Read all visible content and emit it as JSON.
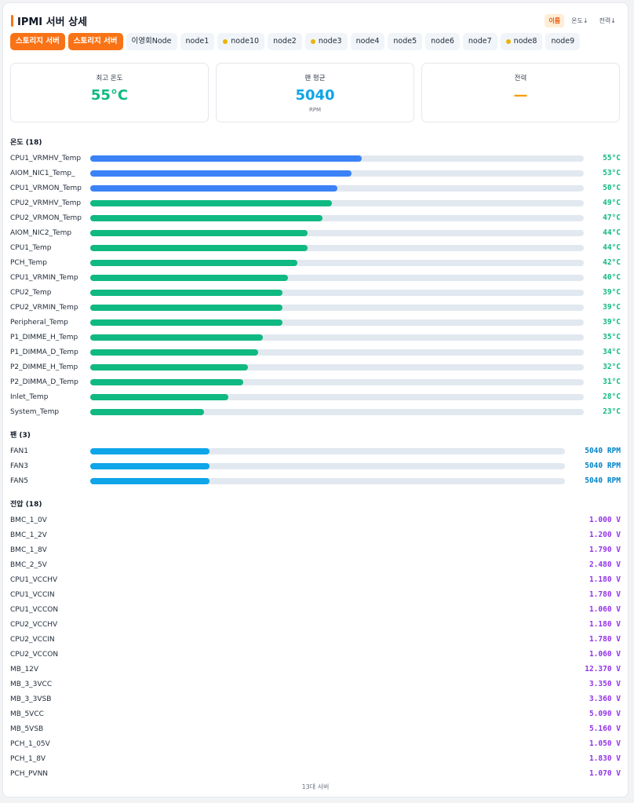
{
  "header": {
    "title": "IPMI 서버 상세",
    "sort": [
      {
        "label": "이름",
        "active": true
      },
      {
        "label": "온도↓",
        "active": false
      },
      {
        "label": "전력↓",
        "active": false
      }
    ]
  },
  "tabs": [
    {
      "label": "스토리지 서버",
      "style": "active"
    },
    {
      "label": "스토리지 서버",
      "style": "active"
    },
    {
      "label": "이영회Node",
      "style": "plain"
    },
    {
      "label": "node1",
      "style": "plain"
    },
    {
      "label": "node10",
      "style": "dot"
    },
    {
      "label": "node2",
      "style": "plain"
    },
    {
      "label": "node3",
      "style": "dot"
    },
    {
      "label": "node4",
      "style": "plain"
    },
    {
      "label": "node5",
      "style": "plain"
    },
    {
      "label": "node6",
      "style": "plain"
    },
    {
      "label": "node7",
      "style": "plain"
    },
    {
      "label": "node8",
      "style": "dot"
    },
    {
      "label": "node9",
      "style": "plain"
    }
  ],
  "cards": [
    {
      "label": "최고 온도",
      "value": "55°C",
      "color": "#10b981"
    },
    {
      "label": "팬 평균",
      "value": "5040",
      "unit": "RPM",
      "color": "#0ea5e9"
    },
    {
      "label": "전력",
      "value": "—",
      "color": "#f59e0b"
    }
  ],
  "temps": {
    "title": "온도 (18)",
    "max": 100,
    "text_color": "#10b981",
    "items": [
      {
        "name": "CPU1_VRMHV_Temp",
        "value": 55,
        "label": "55°C",
        "color": "#3b82f6"
      },
      {
        "name": "AIOM_NIC1_Temp_",
        "value": 53,
        "label": "53°C",
        "color": "#3b82f6"
      },
      {
        "name": "CPU1_VRMON_Temp",
        "value": 50,
        "label": "50°C",
        "color": "#3b82f6"
      },
      {
        "name": "CPU2_VRMHV_Temp",
        "value": 49,
        "label": "49°C",
        "color": "#10b981"
      },
      {
        "name": "CPU2_VRMON_Temp",
        "value": 47,
        "label": "47°C",
        "color": "#10b981"
      },
      {
        "name": "AIOM_NIC2_Temp",
        "value": 44,
        "label": "44°C",
        "color": "#10b981"
      },
      {
        "name": "CPU1_Temp",
        "value": 44,
        "label": "44°C",
        "color": "#10b981"
      },
      {
        "name": "PCH_Temp",
        "value": 42,
        "label": "42°C",
        "color": "#10b981"
      },
      {
        "name": "CPU1_VRMIN_Temp",
        "value": 40,
        "label": "40°C",
        "color": "#10b981"
      },
      {
        "name": "CPU2_Temp",
        "value": 39,
        "label": "39°C",
        "color": "#10b981"
      },
      {
        "name": "CPU2_VRMIN_Temp",
        "value": 39,
        "label": "39°C",
        "color": "#10b981"
      },
      {
        "name": "Peripheral_Temp",
        "value": 39,
        "label": "39°C",
        "color": "#10b981"
      },
      {
        "name": "P1_DIMME_H_Temp",
        "value": 35,
        "label": "35°C",
        "color": "#10b981"
      },
      {
        "name": "P1_DIMMA_D_Temp",
        "value": 34,
        "label": "34°C",
        "color": "#10b981"
      },
      {
        "name": "P2_DIMME_H_Temp",
        "value": 32,
        "label": "32°C",
        "color": "#10b981"
      },
      {
        "name": "P2_DIMMA_D_Temp",
        "value": 31,
        "label": "31°C",
        "color": "#10b981"
      },
      {
        "name": "Inlet_Temp",
        "value": 28,
        "label": "28°C",
        "color": "#10b981"
      },
      {
        "name": "System_Temp",
        "value": 23,
        "label": "23°C",
        "color": "#10b981"
      }
    ]
  },
  "fans": {
    "title": "팬 (3)",
    "max": 20000,
    "text_color": "#0284c7",
    "items": [
      {
        "name": "FAN1",
        "value": 5040,
        "label": "5040 RPM",
        "color": "#0ea5e9"
      },
      {
        "name": "FAN3",
        "value": 5040,
        "label": "5040 RPM",
        "color": "#0ea5e9"
      },
      {
        "name": "FAN5",
        "value": 5040,
        "label": "5040 RPM",
        "color": "#0ea5e9"
      }
    ]
  },
  "volts": {
    "title": "전압 (18)",
    "text_color": "#9333ea",
    "items": [
      {
        "name": "BMC_1_0V",
        "label": "1.000 V"
      },
      {
        "name": "BMC_1_2V",
        "label": "1.200 V"
      },
      {
        "name": "BMC_1_8V",
        "label": "1.790 V"
      },
      {
        "name": "BMC_2_5V",
        "label": "2.480 V"
      },
      {
        "name": "CPU1_VCCHV",
        "label": "1.180 V"
      },
      {
        "name": "CPU1_VCCIN",
        "label": "1.780 V"
      },
      {
        "name": "CPU1_VCCON",
        "label": "1.060 V"
      },
      {
        "name": "CPU2_VCCHV",
        "label": "1.180 V"
      },
      {
        "name": "CPU2_VCCIN",
        "label": "1.780 V"
      },
      {
        "name": "CPU2_VCCON",
        "label": "1.060 V"
      },
      {
        "name": "MB_12V",
        "label": "12.370 V"
      },
      {
        "name": "MB_3_3VCC",
        "label": "3.350 V"
      },
      {
        "name": "MB_3_3VSB",
        "label": "3.360 V"
      },
      {
        "name": "MB_5VCC",
        "label": "5.090 V"
      },
      {
        "name": "MB_5VSB",
        "label": "5.160 V"
      },
      {
        "name": "PCH_1_05V",
        "label": "1.050 V"
      },
      {
        "name": "PCH_1_8V",
        "label": "1.830 V"
      },
      {
        "name": "PCH_PVNN",
        "label": "1.070 V"
      }
    ]
  },
  "footer": "13대 서버"
}
